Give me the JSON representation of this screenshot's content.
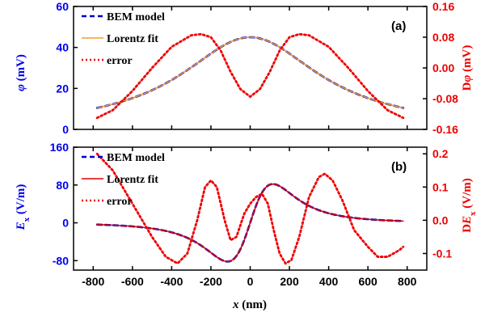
{
  "colors": {
    "left_axis": "#0000ee",
    "right_axis": "#ee0000",
    "bem": "#0000cc",
    "lorentz_a": "#f0a030",
    "lorentz_b": "#dd0000",
    "error": "#ee0000",
    "frame": "#000000"
  },
  "x_axis": {
    "label_italic": "x",
    "label_unit": "(nm)",
    "ticks": [
      "-800",
      "-600",
      "-400",
      "-200",
      "0",
      "200",
      "400",
      "600",
      "800"
    ]
  },
  "chart_data": [
    {
      "type": "line",
      "panel_label": "(a)",
      "x": [
        -800,
        800
      ],
      "xlim": [
        -900,
        900
      ],
      "left_axis": {
        "label_italic": "φ",
        "label_unit": "(mV)",
        "ylim": [
          0,
          60
        ],
        "ticks": [
          "0",
          "20",
          "40",
          "60"
        ]
      },
      "right_axis": {
        "label_prefix": "D",
        "label_italic": "φ",
        "label_unit": "(mV)",
        "ylim": [
          -0.16,
          0.16
        ],
        "ticks": [
          "-0.16",
          "-0.08",
          "0.00",
          "0.08",
          "0.16"
        ]
      },
      "series": [
        {
          "name": "BEM model",
          "axis": "left",
          "style": "dashed",
          "curve": {
            "form": "lorentzian",
            "amplitude": 45,
            "width": 430,
            "x_range": [
              -780,
              780
            ]
          }
        },
        {
          "name": "Lorentz fit",
          "axis": "left",
          "style": "solid",
          "curve": {
            "form": "lorentzian",
            "amplitude": 45,
            "width": 430,
            "x_range": [
              -780,
              780
            ]
          }
        },
        {
          "name": "error",
          "axis": "right",
          "style": "dotted",
          "points": [
            [
              -780,
              -0.13
            ],
            [
              -700,
              -0.11
            ],
            [
              -600,
              -0.06
            ],
            [
              -500,
              0.0
            ],
            [
              -400,
              0.055
            ],
            [
              -300,
              0.085
            ],
            [
              -250,
              0.088
            ],
            [
              -200,
              0.08
            ],
            [
              -150,
              0.045
            ],
            [
              -100,
              -0.01
            ],
            [
              -50,
              -0.055
            ],
            [
              0,
              -0.075
            ],
            [
              50,
              -0.055
            ],
            [
              100,
              -0.01
            ],
            [
              150,
              0.045
            ],
            [
              200,
              0.08
            ],
            [
              250,
              0.088
            ],
            [
              300,
              0.085
            ],
            [
              400,
              0.055
            ],
            [
              500,
              0.0
            ],
            [
              600,
              -0.06
            ],
            [
              700,
              -0.11
            ],
            [
              780,
              -0.13
            ]
          ]
        }
      ]
    },
    {
      "type": "line",
      "panel_label": "(b)",
      "x": [
        -800,
        800
      ],
      "xlim": [
        -900,
        900
      ],
      "left_axis": {
        "label_italic": "E",
        "label_sub": "x",
        "label_unit": "(V/m)",
        "ylim": [
          -100,
          160
        ],
        "ticks": [
          "-80",
          "0",
          "80",
          "160"
        ]
      },
      "right_axis": {
        "label_prefix": "D",
        "label_italic": "E",
        "label_sub": "x",
        "label_unit": "(V/m)",
        "ylim": [
          -0.15,
          0.22
        ],
        "ticks": [
          "-0.1",
          "0.0",
          "0.1",
          "0.2"
        ]
      },
      "series": [
        {
          "name": "BEM model",
          "axis": "left",
          "style": "dashed",
          "curve": {
            "form": "lorentzian_derivative",
            "peak_abs": 82,
            "width": 200,
            "x_range": [
              -780,
              780
            ]
          }
        },
        {
          "name": "Lorentz fit",
          "axis": "left",
          "style": "solid",
          "curve": {
            "form": "lorentzian_derivative",
            "peak_abs": 82,
            "width": 200,
            "x_range": [
              -780,
              780
            ]
          }
        },
        {
          "name": "error",
          "axis": "right",
          "style": "dotted",
          "points": [
            [
              -780,
              0.2
            ],
            [
              -700,
              0.15
            ],
            [
              -600,
              0.05
            ],
            [
              -500,
              -0.05
            ],
            [
              -430,
              -0.11
            ],
            [
              -370,
              -0.13
            ],
            [
              -320,
              -0.1
            ],
            [
              -270,
              0.0
            ],
            [
              -230,
              0.1
            ],
            [
              -200,
              0.12
            ],
            [
              -170,
              0.1
            ],
            [
              -130,
              0.0
            ],
            [
              -100,
              -0.06
            ],
            [
              -70,
              -0.05
            ],
            [
              -30,
              0.02
            ],
            [
              0,
              0.05
            ],
            [
              30,
              0.07
            ],
            [
              60,
              0.08
            ],
            [
              90,
              0.05
            ],
            [
              120,
              -0.03
            ],
            [
              150,
              -0.1
            ],
            [
              180,
              -0.13
            ],
            [
              210,
              -0.12
            ],
            [
              250,
              -0.05
            ],
            [
              300,
              0.07
            ],
            [
              350,
              0.13
            ],
            [
              380,
              0.14
            ],
            [
              420,
              0.12
            ],
            [
              470,
              0.06
            ],
            [
              530,
              -0.03
            ],
            [
              600,
              -0.08
            ],
            [
              650,
              -0.11
            ],
            [
              700,
              -0.11
            ],
            [
              760,
              -0.09
            ],
            [
              780,
              -0.08
            ]
          ]
        }
      ]
    }
  ]
}
